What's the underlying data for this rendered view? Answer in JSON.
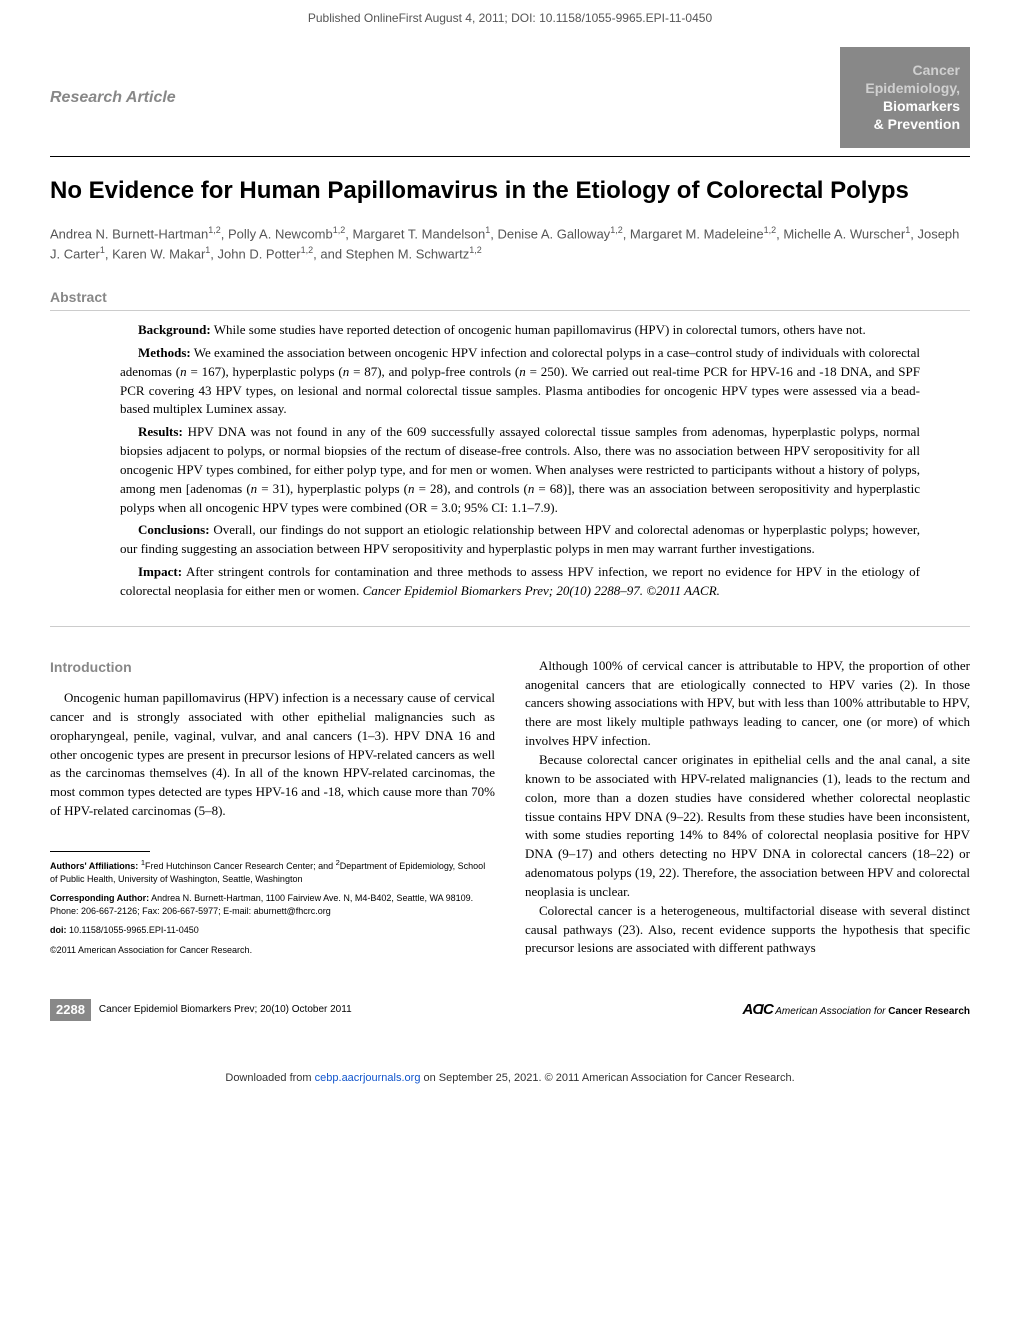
{
  "top_banner": "Published OnlineFirst August 4, 2011; DOI: 10.1158/1055-9965.EPI-11-0450",
  "article_type": "Research Article",
  "journal_badge": {
    "line1": "Cancer",
    "line2": "Epidemiology,",
    "line3": "Biomarkers",
    "line4": "& Prevention"
  },
  "title": "No Evidence for Human Papillomavirus in the Etiology of Colorectal Polyps",
  "authors_html": "Andrea N. Burnett-Hartman<sup>1,2</sup>, Polly A. Newcomb<sup>1,2</sup>, Margaret T. Mandelson<sup>1</sup>, Denise A. Galloway<sup>1,2</sup>, Margaret M. Madeleine<sup>1,2</sup>, Michelle A. Wurscher<sup>1</sup>, Joseph J. Carter<sup>1</sup>, Karen W. Makar<sup>1</sup>, John D. Potter<sup>1,2</sup>, and Stephen M. Schwartz<sup>1,2</sup>",
  "abstract_label": "Abstract",
  "abstract": {
    "background": "<strong>Background:</strong> While some studies have reported detection of oncogenic human papillomavirus (HPV) in colorectal tumors, others have not.",
    "methods": "<strong>Methods:</strong> We examined the association between oncogenic HPV infection and colorectal polyps in a case–control study of individuals with colorectal adenomas (<em>n</em> = 167), hyperplastic polyps (<em>n</em> = 87), and polyp-free controls (<em>n</em> = 250). We carried out real-time PCR for HPV-16 and -18 DNA, and SPF PCR covering 43 HPV types, on lesional and normal colorectal tissue samples. Plasma antibodies for oncogenic HPV types were assessed via a bead-based multiplex Luminex assay.",
    "results": "<strong>Results:</strong> HPV DNA was not found in any of the 609 successfully assayed colorectal tissue samples from adenomas, hyperplastic polyps, normal biopsies adjacent to polyps, or normal biopsies of the rectum of disease-free controls. Also, there was no association between HPV seropositivity for all oncogenic HPV types combined, for either polyp type, and for men or women. When analyses were restricted to participants without a history of polyps, among men [adenomas (<em>n</em> = 31), hyperplastic polyps (<em>n</em> = 28), and controls (<em>n</em> = 68)], there was an association between seropositivity and hyperplastic polyps when all oncogenic HPV types were combined (OR = 3.0; 95% CI: 1.1–7.9).",
    "conclusions": "<strong>Conclusions:</strong> Overall, our findings do not support an etiologic relationship between HPV and colorectal adenomas or hyperplastic polyps; however, our finding suggesting an association between HPV seropositivity and hyperplastic polyps in men may warrant further investigations.",
    "impact": "<strong>Impact:</strong> After stringent controls for contamination and three methods to assess HPV infection, we report no evidence for HPV in the etiology of colorectal neoplasia for either men or women. <em>Cancer Epidemiol Biomarkers Prev; 20(10) 2288–97. ©2011 AACR.</em>"
  },
  "introduction_heading": "Introduction",
  "left_para1": "Oncogenic human papillomavirus (HPV) infection is a necessary cause of cervical cancer and is strongly associated with other epithelial malignancies such as oropharyngeal, penile, vaginal, vulvar, and anal cancers (1–3). HPV DNA 16 and other oncogenic types are present in precursor lesions of HPV-related cancers as well as the carcinomas themselves (4). In all of the known HPV-related carcinomas, the most common types detected are types HPV-16 and -18, which cause more than 70% of HPV-related carcinomas (5–8).",
  "right_para1": "Although 100% of cervical cancer is attributable to HPV, the proportion of other anogenital cancers that are etiologically connected to HPV varies (2). In those cancers showing associations with HPV, but with less than 100% attributable to HPV, there are most likely multiple pathways leading to cancer, one (or more) of which involves HPV infection.",
  "right_para2": "Because colorectal cancer originates in epithelial cells and the anal canal, a site known to be associated with HPV-related malignancies (1), leads to the rectum and colon, more than a dozen studies have considered whether colorectal neoplastic tissue contains HPV DNA (9–22). Results from these studies have been inconsistent, with some studies reporting 14% to 84% of colorectal neoplasia positive for HPV DNA (9–17) and others detecting no HPV DNA in colorectal cancers (18–22) or adenomatous polyps (19, 22). Therefore, the association between HPV and colorectal neoplasia is unclear.",
  "right_para3": "Colorectal cancer is a heterogeneous, multifactorial disease with several distinct causal pathways (23). Also, recent evidence supports the hypothesis that specific precursor lesions are associated with different pathways",
  "footnotes": {
    "affiliations": "<strong>Authors' Affiliations:</strong> <sup>1</sup>Fred Hutchinson Cancer Research Center; and <sup>2</sup>Department of Epidemiology, School of Public Health, University of Washington, Seattle, Washington",
    "corresponding": "<strong>Corresponding Author:</strong> Andrea N. Burnett-Hartman, 1100 Fairview Ave. N, M4-B402, Seattle, WA 98109. Phone: 206-667-2126; Fax: 206-667-5977; E-mail: aburnett@fhcrc.org",
    "doi": "<strong>doi:</strong> 10.1158/1055-9965.EPI-11-0450",
    "copyright": "©2011 American Association for Cancer Research."
  },
  "footer": {
    "page_num": "2288",
    "journal_info": "Cancer Epidemiol Biomarkers Prev; 20(10) October 2011",
    "aacr_prefix": "AACR",
    "aacr_text": "American Association for",
    "aacr_bold": "Cancer Research"
  },
  "bottom_banner": {
    "prefix": "Downloaded from ",
    "link": "cebp.aacrjournals.org",
    "suffix": " on September 25, 2021. © 2011 American Association for Cancer Research."
  },
  "colors": {
    "gray_text": "#888888",
    "badge_bg": "#888888",
    "link_color": "#1155cc"
  },
  "typography": {
    "title_fontsize": 24,
    "body_fontsize": 13,
    "footnote_fontsize": 9
  }
}
